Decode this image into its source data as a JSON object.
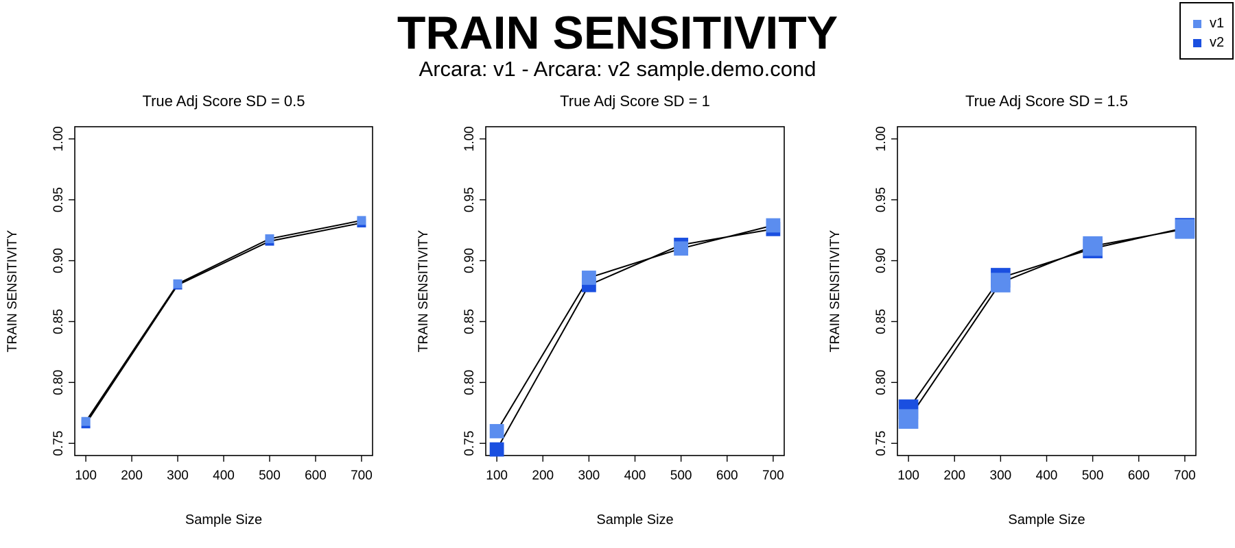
{
  "title": "TRAIN SENSITIVITY",
  "subtitle": "Arcara: v1 - Arcara: v2 sample.demo.cond",
  "legend": {
    "placement": "top-right",
    "items": [
      {
        "label": "v1",
        "color": "#5b8def"
      },
      {
        "label": "v2",
        "color": "#1a4fe0"
      }
    ]
  },
  "chart_data": [
    {
      "type": "line",
      "title": "True Adj Score SD = 0.5",
      "xlabel": "Sample Size",
      "ylabel": "TRAIN SENSITIVITY",
      "xlim": [
        100,
        700
      ],
      "ylim": [
        0.75,
        1.0
      ],
      "xticks": [
        "100",
        "200",
        "300",
        "400",
        "500",
        "600",
        "700"
      ],
      "yticks": [
        "0.75",
        "0.80",
        "0.85",
        "0.90",
        "0.95",
        "1.00"
      ],
      "grid": false,
      "marker_size": 1,
      "x": [
        100,
        300,
        500,
        700
      ],
      "series": [
        {
          "name": "v1",
          "color": "#5b8def",
          "values": [
            0.768,
            0.881,
            0.918,
            0.933
          ]
        },
        {
          "name": "v2",
          "color": "#1a4fe0",
          "values": [
            0.766,
            0.88,
            0.916,
            0.931
          ]
        }
      ]
    },
    {
      "type": "line",
      "title": "True Adj Score SD = 1",
      "xlabel": "Sample Size",
      "ylabel": "TRAIN SENSITIVITY",
      "xlim": [
        100,
        700
      ],
      "ylim": [
        0.75,
        1.0
      ],
      "xticks": [
        "100",
        "200",
        "300",
        "400",
        "500",
        "600",
        "700"
      ],
      "yticks": [
        "0.75",
        "0.80",
        "0.85",
        "0.90",
        "0.95",
        "1.00"
      ],
      "grid": false,
      "marker_size": 1.6,
      "x": [
        100,
        300,
        500,
        700
      ],
      "series": [
        {
          "name": "v1",
          "color": "#5b8def",
          "values": [
            0.76,
            0.886,
            0.91,
            0.929
          ]
        },
        {
          "name": "v2",
          "color": "#1a4fe0",
          "values": [
            0.745,
            0.88,
            0.913,
            0.926
          ]
        }
      ]
    },
    {
      "type": "line",
      "title": "True Adj Score SD = 1.5",
      "xlabel": "Sample Size",
      "ylabel": "TRAIN SENSITIVITY",
      "xlim": [
        100,
        700
      ],
      "ylim": [
        0.75,
        1.0
      ],
      "xticks": [
        "100",
        "200",
        "300",
        "400",
        "500",
        "600",
        "700"
      ],
      "yticks": [
        "0.75",
        "0.80",
        "0.85",
        "0.90",
        "0.95",
        "1.00"
      ],
      "grid": false,
      "marker_size": 2.2,
      "x": [
        100,
        300,
        500,
        700
      ],
      "series": [
        {
          "name": "v1",
          "color": "#5b8def",
          "values": [
            0.77,
            0.882,
            0.912,
            0.926
          ]
        },
        {
          "name": "v2",
          "color": "#1a4fe0",
          "values": [
            0.778,
            0.886,
            0.91,
            0.927
          ]
        }
      ]
    }
  ]
}
